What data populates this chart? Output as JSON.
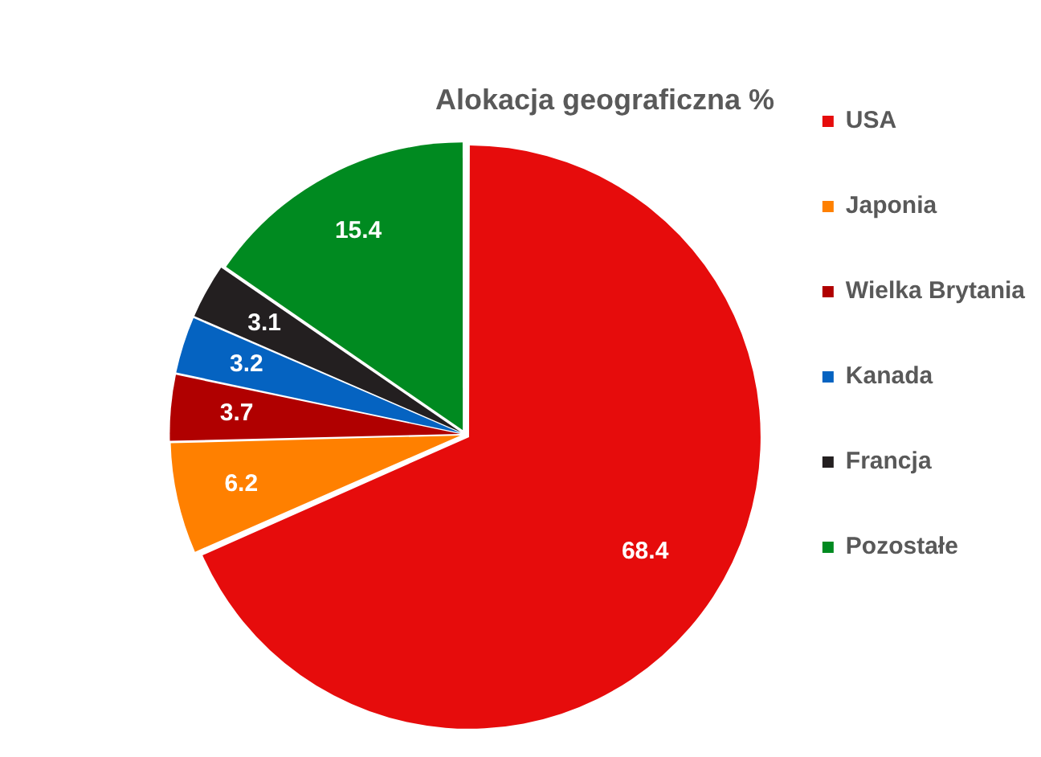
{
  "chart_data": {
    "type": "pie",
    "title": "Alokacja geograficzna %",
    "categories": [
      "USA",
      "Japonia",
      "Wielka Brytania",
      "Kanada",
      "Francja",
      "Pozostałe"
    ],
    "values": [
      68.4,
      6.2,
      3.7,
      3.2,
      3.1,
      15.4
    ],
    "colors": [
      "#e60c0c",
      "#ff8000",
      "#b00000",
      "#0563c1",
      "#231f20",
      "#008a20"
    ],
    "data_labels": true,
    "legend": "right"
  }
}
